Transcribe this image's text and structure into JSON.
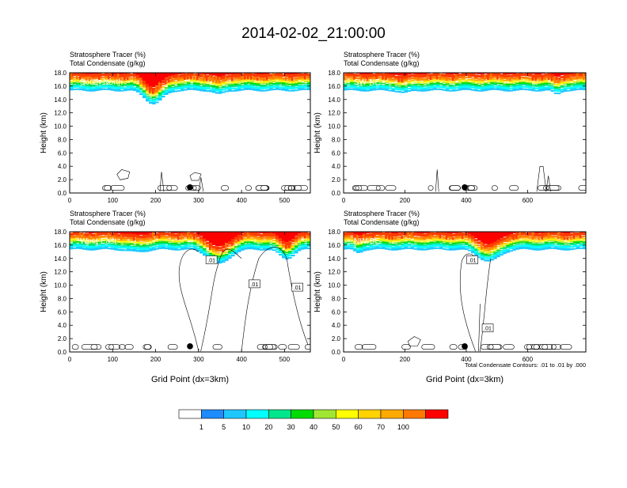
{
  "title": "2014-02-02_21:00:00",
  "colors": {
    "scale": [
      "#ffffff",
      "#1e8cff",
      "#1ec8ff",
      "#00ffff",
      "#00e68c",
      "#00dc00",
      "#a0e632",
      "#ffff00",
      "#ffd200",
      "#ffaa00",
      "#ff7800",
      "#ff3c00",
      "#ff0000"
    ],
    "contour": "#000000"
  },
  "colorbar": {
    "labels": [
      "1",
      "5",
      "10",
      "20",
      "30",
      "40",
      "50",
      "60",
      "70",
      "100"
    ]
  },
  "footnote": "Total Condensate Contours: .01 to .01 by .000",
  "chart_data": [
    {
      "type": "heatmap",
      "name": "South-North",
      "title_line1": "Stratosphere Tracer   (%)",
      "title_line2": "Total Condensate   (g/kg)",
      "ylabel": "Height (km)",
      "xlabel": "",
      "xlim": [
        0,
        560
      ],
      "ylim": [
        0,
        18
      ],
      "xticks": [
        "0",
        "100",
        "200",
        "300",
        "400",
        "500"
      ],
      "yticks": [
        "0.0",
        "2.0",
        "4.0",
        "6.0",
        "8.0",
        "10.0",
        "12.0",
        "14.0",
        "16.0",
        "18.0"
      ],
      "marker_x": 280,
      "contour_labels": []
    },
    {
      "type": "heatmap",
      "name": "SW-NE",
      "title_line1": "Stratosphere Tracer   (%)",
      "title_line2": "Total Condensate   (g/kg)",
      "ylabel": "Height (km)",
      "xlabel": "",
      "xlim": [
        0,
        790
      ],
      "ylim": [
        0,
        18
      ],
      "xticks": [
        "0",
        "200",
        "400",
        "600"
      ],
      "yticks": [
        "0.0",
        "2.0",
        "4.0",
        "6.0",
        "8.0",
        "10.0",
        "12.0",
        "14.0",
        "16.0",
        "18.0"
      ],
      "marker_x": 395,
      "contour_labels": []
    },
    {
      "type": "heatmap",
      "name": "West-East",
      "title_line1": "Stratosphere Tracer   (%)",
      "title_line2": "Total Condensate   (g/kg)",
      "ylabel": "Height (km)",
      "xlabel": "Grid Point (dx=3km)",
      "xlim": [
        0,
        560
      ],
      "ylim": [
        0,
        18
      ],
      "xticks": [
        "0",
        "100",
        "200",
        "300",
        "400",
        "500"
      ],
      "yticks": [
        "0.0",
        "2.0",
        "4.0",
        "6.0",
        "8.0",
        "10.0",
        "12.0",
        "14.0",
        "16.0",
        "18.0"
      ],
      "marker_x": 280,
      "contour_labels": [
        ".01",
        ".01",
        ".01"
      ]
    },
    {
      "type": "heatmap",
      "name": "NW-SE",
      "title_line1": "Stratosphere Tracer   (%)",
      "title_line2": "Total Condensate   (g/kg)",
      "ylabel": "Height (km)",
      "xlabel": "Grid Point (dx=3km)",
      "xlim": [
        0,
        790
      ],
      "ylim": [
        0,
        18
      ],
      "xticks": [
        "0",
        "200",
        "400",
        "600"
      ],
      "yticks": [
        "0.0",
        "2.0",
        "4.0",
        "6.0",
        "8.0",
        "10.0",
        "12.0",
        "14.0",
        "16.0",
        "18.0"
      ],
      "marker_x": 395,
      "contour_labels": [
        ".01",
        ".01"
      ]
    }
  ]
}
